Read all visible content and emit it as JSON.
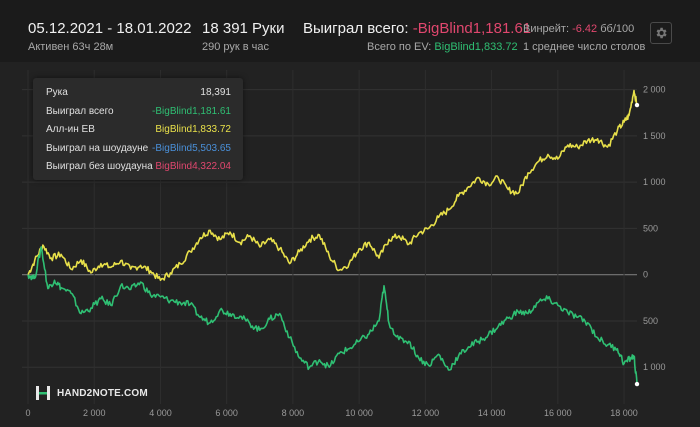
{
  "header": {
    "date_range": "05.12.2021 - 18.01.2022",
    "active_time": "Активен 63ч 28м",
    "hands": "18 391 Руки",
    "hands_per_hour": "290 рук в час",
    "won_label": "Выиграл всего:",
    "won_value": "-BigBlind1,181.61",
    "ev_label": "Всего по EV:",
    "ev_value": "BigBlind1,833.72",
    "winrate_label": "Винрейт:",
    "winrate_value": "-6.42",
    "winrate_unit": "бб/100",
    "tables_text": "1 среднее число столов",
    "colors": {
      "negative": "#e0476e",
      "positive": "#2fbf73"
    }
  },
  "tooltip": {
    "rows": [
      {
        "label": "Рука",
        "value": "18,391",
        "color": "#e0e0e0"
      },
      {
        "label": "Выиграл всего",
        "value": "-BigBlind1,181.61",
        "color": "#2fbf73"
      },
      {
        "label": "Алл-ин ЕВ",
        "value": "BigBlind1,833.72",
        "color": "#e8e04a"
      },
      {
        "label": "Выиграл на шоудауне",
        "value": "-BigBlind5,503.65",
        "color": "#4a90d9"
      },
      {
        "label": "Выиграл без шоудауна",
        "value": "BigBlind4,322.04",
        "color": "#e0476e"
      }
    ]
  },
  "logo": {
    "text": "HAND2NOTE.COM"
  },
  "chart_data": {
    "type": "line",
    "x_ticks": [
      0,
      2000,
      4000,
      6000,
      8000,
      10000,
      12000,
      14000,
      16000,
      18000
    ],
    "x_tick_labels": [
      "0",
      "2 000",
      "4 000",
      "6 000",
      "8 000",
      "10 000",
      "12 000",
      "14 000",
      "16 000",
      "18 000"
    ],
    "y_ticks": [
      2000,
      1500,
      1000,
      500,
      0,
      -500,
      -1000
    ],
    "y_tick_labels": [
      "2 000",
      "1 500",
      "1 000",
      "500",
      "0",
      "500",
      "1 000"
    ],
    "xlim": [
      0,
      18391
    ],
    "ylim": [
      -1300,
      2050
    ],
    "grid": true,
    "series": [
      {
        "name": "Алл-ин ЕВ",
        "color": "#e8e04a",
        "x": [
          0,
          200,
          450,
          700,
          1000,
          1300,
          1600,
          1900,
          2200,
          2500,
          2800,
          3100,
          3400,
          3700,
          4000,
          4300,
          4600,
          4900,
          5200,
          5500,
          5800,
          6100,
          6400,
          6700,
          7000,
          7300,
          7600,
          7900,
          8200,
          8500,
          8800,
          9100,
          9400,
          9700,
          10000,
          10300,
          10600,
          10900,
          11200,
          11500,
          11800,
          12100,
          12400,
          12700,
          13000,
          13300,
          13600,
          13900,
          14200,
          14500,
          14800,
          15100,
          15400,
          15700,
          16000,
          16300,
          16600,
          16900,
          17200,
          17500,
          17800,
          18000,
          18150,
          18300,
          18391
        ],
        "values": [
          0,
          150,
          320,
          180,
          220,
          60,
          160,
          20,
          120,
          80,
          150,
          60,
          100,
          40,
          -60,
          20,
          120,
          250,
          400,
          480,
          380,
          460,
          350,
          420,
          300,
          380,
          280,
          120,
          250,
          380,
          430,
          200,
          50,
          120,
          280,
          350,
          180,
          380,
          420,
          330,
          450,
          500,
          620,
          700,
          850,
          950,
          1050,
          980,
          1050,
          920,
          880,
          1100,
          1220,
          1300,
          1250,
          1400,
          1380,
          1450,
          1470,
          1380,
          1560,
          1650,
          1720,
          1990,
          1833.72
        ]
      },
      {
        "name": "Выиграл всего",
        "color": "#2fbf73",
        "x": [
          0,
          200,
          400,
          600,
          800,
          1000,
          1300,
          1600,
          1900,
          2200,
          2500,
          2800,
          3100,
          3400,
          3700,
          4000,
          4300,
          4600,
          4900,
          5200,
          5500,
          5800,
          6100,
          6400,
          6700,
          7000,
          7300,
          7600,
          7900,
          8200,
          8500,
          8800,
          9100,
          9400,
          9700,
          10000,
          10300,
          10600,
          10750,
          10900,
          11200,
          11500,
          11800,
          12100,
          12400,
          12700,
          13000,
          13300,
          13600,
          13900,
          14200,
          14500,
          14800,
          15100,
          15400,
          15700,
          16000,
          16300,
          16600,
          16900,
          17200,
          17500,
          17800,
          18000,
          18200,
          18300,
          18391
        ],
        "values": [
          0,
          -40,
          300,
          -150,
          -60,
          -140,
          -200,
          -420,
          -360,
          -260,
          -330,
          -120,
          -160,
          -80,
          -220,
          -240,
          -280,
          -300,
          -320,
          -460,
          -520,
          -380,
          -420,
          -450,
          -530,
          -600,
          -480,
          -420,
          -680,
          -900,
          -1000,
          -920,
          -1000,
          -850,
          -800,
          -720,
          -640,
          -500,
          -120,
          -520,
          -700,
          -720,
          -900,
          -980,
          -860,
          -1030,
          -880,
          -780,
          -720,
          -650,
          -560,
          -470,
          -400,
          -420,
          -300,
          -260,
          -330,
          -410,
          -460,
          -520,
          -680,
          -760,
          -800,
          -960,
          -900,
          -880,
          -1181.61
        ]
      }
    ]
  }
}
